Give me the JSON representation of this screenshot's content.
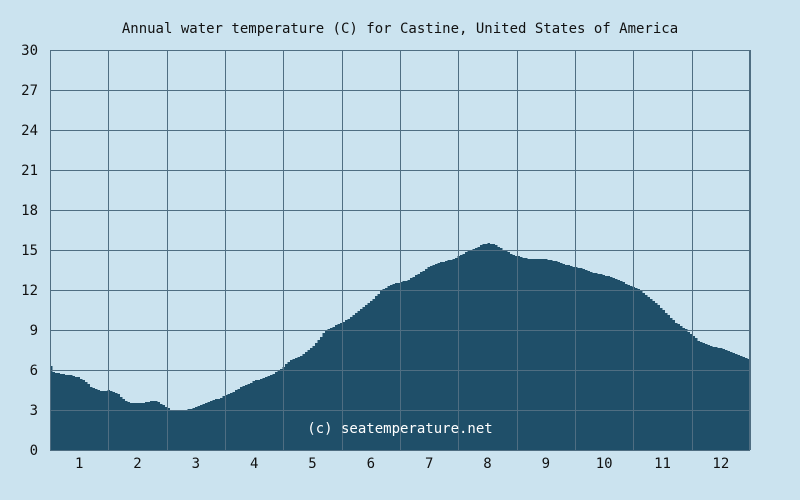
{
  "chart_data": {
    "type": "area",
    "title": "Annual water temperature (C) for Castine, United States of America",
    "xlabel": "",
    "ylabel": "",
    "xlim": [
      0.5,
      12.5
    ],
    "ylim": [
      0,
      30
    ],
    "x_ticks": [
      "1",
      "2",
      "3",
      "4",
      "5",
      "6",
      "7",
      "8",
      "9",
      "10",
      "11",
      "12"
    ],
    "y_ticks": [
      "0",
      "3",
      "6",
      "9",
      "12",
      "15",
      "18",
      "21",
      "24",
      "27",
      "30"
    ],
    "grid": true,
    "colors": {
      "background": "#cbe3ef",
      "plot": "#cbe3ef",
      "fill": "#1f4f69",
      "grid": "#4f6e82"
    },
    "watermark": "(c) seatemperature.net",
    "series": [
      {
        "x": [
          0.5,
          0.55,
          0.7,
          0.85,
          1.0,
          1.1,
          1.2,
          1.35,
          1.5,
          1.65,
          1.75,
          1.85,
          2.0,
          2.15,
          2.3,
          2.45,
          2.6,
          2.75,
          2.9,
          3.05,
          3.2,
          3.4,
          3.6,
          3.8,
          4.0,
          4.2,
          4.4,
          4.6,
          4.8,
          5.0,
          5.2,
          5.4,
          5.6,
          5.8,
          6.0,
          6.2,
          6.4,
          6.6,
          6.8,
          7.0,
          7.2,
          7.4,
          7.6,
          7.8,
          7.9,
          8.0,
          8.1,
          8.2,
          8.3,
          8.45,
          8.6,
          8.8,
          9.0,
          9.2,
          9.4,
          9.6,
          9.8,
          10.0,
          10.2,
          10.4,
          10.6,
          10.8,
          11.0,
          11.2,
          11.4,
          11.6,
          11.8,
          12.0,
          12.2,
          12.35,
          12.5
        ],
        "y": [
          6.3,
          5.8,
          5.7,
          5.6,
          5.4,
          5.1,
          4.7,
          4.4,
          4.5,
          4.2,
          3.8,
          3.5,
          3.5,
          3.6,
          3.7,
          3.3,
          2.9,
          2.9,
          3.1,
          3.3,
          3.6,
          3.9,
          4.3,
          4.8,
          5.2,
          5.5,
          5.9,
          6.7,
          7.1,
          7.8,
          8.9,
          9.4,
          9.8,
          10.5,
          11.2,
          12.1,
          12.5,
          12.7,
          13.2,
          13.8,
          14.1,
          14.3,
          14.8,
          15.2,
          15.4,
          15.5,
          15.4,
          15.2,
          14.9,
          14.6,
          14.4,
          14.3,
          14.3,
          14.1,
          13.8,
          13.6,
          13.3,
          13.1,
          12.8,
          12.4,
          12.0,
          11.3,
          10.5,
          9.6,
          9.0,
          8.2,
          7.8,
          7.6,
          7.3,
          7.0,
          6.8
        ]
      }
    ]
  }
}
